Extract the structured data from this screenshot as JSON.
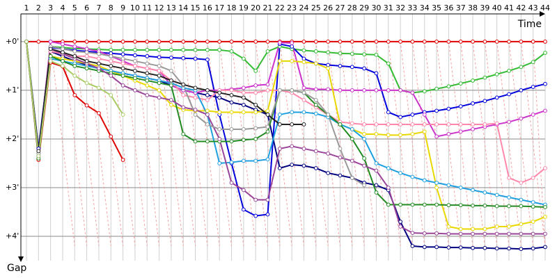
{
  "chart_data": {
    "type": "line",
    "x_label": "Time",
    "y_label": "Gap",
    "categories": [
      "1",
      "2",
      "3",
      "4",
      "5",
      "6",
      "7",
      "8",
      "9",
      "10",
      "11",
      "12",
      "13",
      "14",
      "15",
      "16",
      "17",
      "18",
      "19",
      "20",
      "21",
      "22",
      "23",
      "24",
      "25",
      "26",
      "27",
      "28",
      "29",
      "30",
      "31",
      "32",
      "33",
      "34",
      "35",
      "36",
      "37",
      "38",
      "39",
      "40",
      "41",
      "42",
      "43",
      "44"
    ],
    "ylim": [
      -0.57,
      4.5
    ],
    "y_reversed": true,
    "grid": true,
    "yticks": [
      {
        "value": 0,
        "label": "+0'"
      },
      {
        "value": 1,
        "label": "+1'"
      },
      {
        "value": 2,
        "label": "+2'"
      },
      {
        "value": 3,
        "label": "+3'"
      },
      {
        "value": 4,
        "label": "+4'"
      }
    ],
    "series": [
      {
        "color": "#e00000",
        "values": [
          0,
          0,
          0,
          0,
          0,
          0,
          0,
          0,
          0,
          0,
          0,
          0,
          0,
          0,
          0,
          0,
          0,
          0,
          0,
          0,
          0,
          0,
          0,
          0,
          0,
          0,
          0,
          0,
          0,
          0,
          0,
          0,
          0,
          0,
          0,
          0,
          0,
          0,
          0,
          0,
          0,
          0,
          0,
          0
        ]
      },
      {
        "color": "#e00000",
        "values": [
          0,
          2.43,
          0.43,
          0.51,
          1.1,
          1.31,
          1.47,
          1.95,
          2.43,
          null,
          null,
          null,
          null,
          null,
          null,
          null,
          null,
          null,
          null,
          null,
          null,
          null,
          null,
          null,
          null,
          null,
          null,
          null,
          null,
          null,
          null,
          null,
          null,
          null,
          null,
          null,
          null,
          null,
          null,
          null,
          null,
          null,
          null,
          null
        ]
      },
      {
        "color": "#33bb33",
        "values": [
          0,
          2.3,
          0.1,
          0.12,
          0.14,
          0.15,
          0.16,
          0.17,
          0.17,
          0.17,
          0.17,
          0.17,
          0.17,
          0.17,
          0.17,
          0.17,
          0.17,
          0.2,
          0.35,
          0.6,
          0.2,
          0.1,
          0.15,
          0.18,
          0.2,
          0.22,
          0.24,
          0.25,
          0.26,
          0.27,
          0.45,
          1.0,
          1.05,
          1.02,
          0.97,
          0.92,
          0.86,
          0.8,
          0.74,
          0.67,
          0.6,
          0.52,
          0.42,
          0.23
        ]
      },
      {
        "color": "#0000dd",
        "values": [
          0,
          2.2,
          0.12,
          0.15,
          0.18,
          0.2,
          0.22,
          0.24,
          0.26,
          0.28,
          0.3,
          0.32,
          0.33,
          0.34,
          0.35,
          0.37,
          1.5,
          2.5,
          3.45,
          3.58,
          3.55,
          0.05,
          0.1,
          0.35,
          0.45,
          0.48,
          0.5,
          0.52,
          0.55,
          0.65,
          1.45,
          1.55,
          1.5,
          1.45,
          1.42,
          1.38,
          1.33,
          1.27,
          1.22,
          1.15,
          1.08,
          1.0,
          0.93,
          0.87
        ]
      },
      {
        "color": "#000080",
        "values": [
          0,
          2.3,
          0.2,
          0.3,
          0.4,
          0.48,
          0.55,
          0.6,
          0.65,
          0.7,
          0.75,
          0.8,
          0.9,
          1.0,
          1.05,
          1.1,
          1.15,
          1.25,
          1.3,
          1.4,
          1.5,
          2.6,
          2.53,
          2.55,
          2.6,
          2.7,
          2.75,
          2.8,
          2.9,
          2.95,
          3.05,
          3.7,
          4.2,
          4.22,
          4.22,
          4.23,
          4.23,
          4.24,
          4.24,
          4.25,
          4.25,
          4.26,
          4.25,
          4.22
        ]
      },
      {
        "color": "#cc33cc",
        "values": [
          0,
          2.35,
          0.0,
          0.05,
          0.1,
          0.15,
          0.2,
          0.3,
          0.4,
          0.5,
          0.55,
          0.6,
          0.9,
          1.0,
          1.05,
          1.0,
          1.0,
          0.98,
          0.95,
          0.9,
          0.88,
          0.02,
          0.03,
          0.95,
          0.98,
          0.98,
          1.0,
          1.0,
          1.0,
          1.0,
          1.0,
          1.0,
          1.05,
          1.5,
          1.95,
          1.9,
          1.85,
          1.8,
          1.75,
          1.7,
          1.65,
          1.58,
          1.5,
          1.42
        ]
      },
      {
        "color": "#ff88aa",
        "values": [
          0,
          2.3,
          0.2,
          0.25,
          0.3,
          0.3,
          0.35,
          0.4,
          0.45,
          0.5,
          0.55,
          0.6,
          0.8,
          1.1,
          1.15,
          1.2,
          1.0,
          1.0,
          1.05,
          1.05,
          1.0,
          1.0,
          1.05,
          1.2,
          1.35,
          1.5,
          1.65,
          1.68,
          1.7,
          1.7,
          1.7,
          1.7,
          1.7,
          1.7,
          1.7,
          1.7,
          1.7,
          1.7,
          1.7,
          1.68,
          2.8,
          2.9,
          2.8,
          2.6
        ]
      },
      {
        "color": "#e8d800",
        "values": [
          0,
          2.25,
          0.3,
          0.35,
          0.4,
          0.45,
          0.5,
          0.6,
          0.7,
          0.8,
          0.9,
          1.0,
          1.3,
          1.4,
          1.42,
          1.42,
          1.45,
          1.45,
          1.45,
          1.45,
          1.42,
          0.4,
          0.4,
          0.42,
          0.45,
          0.55,
          1.7,
          1.8,
          1.9,
          1.9,
          1.92,
          1.92,
          1.9,
          1.85,
          3.0,
          3.8,
          3.85,
          3.85,
          3.85,
          3.8,
          3.8,
          3.75,
          3.7,
          3.6
        ]
      },
      {
        "color": "#1e9fe0",
        "values": [
          0,
          2.3,
          0.35,
          0.4,
          0.45,
          0.5,
          0.55,
          0.6,
          0.65,
          0.7,
          0.75,
          0.8,
          0.85,
          0.95,
          1.0,
          1.5,
          2.5,
          2.48,
          2.45,
          2.45,
          2.42,
          1.5,
          1.45,
          1.45,
          1.48,
          1.55,
          1.7,
          1.8,
          2.0,
          2.5,
          2.6,
          2.7,
          2.78,
          2.85,
          2.9,
          2.95,
          3.0,
          3.05,
          3.1,
          3.15,
          3.2,
          3.25,
          3.3,
          3.35
        ]
      },
      {
        "color": "#228b22",
        "values": [
          0,
          2.4,
          0.3,
          0.4,
          0.5,
          0.55,
          0.6,
          0.65,
          0.7,
          0.75,
          0.8,
          0.85,
          0.9,
          1.9,
          2.05,
          2.05,
          2.05,
          2.05,
          2.02,
          2.0,
          1.85,
          1.0,
          1.0,
          1.05,
          1.3,
          1.5,
          1.7,
          2.0,
          2.4,
          3.1,
          3.35,
          3.35,
          3.35,
          3.35,
          3.35,
          3.36,
          3.36,
          3.37,
          3.37,
          3.38,
          3.38,
          3.38,
          3.39,
          3.4
        ]
      },
      {
        "color": "#994499",
        "values": [
          0,
          2.35,
          0.15,
          0.25,
          0.35,
          0.45,
          0.55,
          0.7,
          0.9,
          1.0,
          1.1,
          1.15,
          1.2,
          1.35,
          1.4,
          1.5,
          2.0,
          2.9,
          3.05,
          3.25,
          3.25,
          2.2,
          2.15,
          2.2,
          2.25,
          2.3,
          2.38,
          2.45,
          2.55,
          2.65,
          3.0,
          3.8,
          3.93,
          3.94,
          3.94,
          3.95,
          3.95,
          3.95,
          3.95,
          3.95,
          3.95,
          3.95,
          3.95,
          3.95
        ]
      },
      {
        "color": "#999999",
        "values": [
          0,
          2.3,
          0.1,
          0.15,
          0.2,
          0.22,
          0.25,
          0.3,
          0.35,
          0.4,
          0.45,
          0.5,
          0.6,
          0.9,
          1.5,
          1.7,
          1.8,
          1.8,
          1.8,
          1.78,
          1.75,
          1.0,
          1.0,
          1.05,
          1.2,
          1.5,
          2.2,
          2.8,
          2.95,
          null,
          null,
          null,
          null,
          null,
          null,
          null,
          null,
          null,
          null,
          null,
          null,
          null,
          null,
          null
        ]
      },
      {
        "color": "#222222",
        "values": [
          0,
          2.25,
          0.15,
          0.22,
          0.3,
          0.4,
          0.45,
          0.5,
          0.55,
          0.6,
          0.65,
          0.7,
          0.8,
          0.88,
          0.95,
          1.0,
          1.05,
          1.1,
          1.15,
          1.3,
          1.5,
          1.7,
          1.7,
          1.7,
          null,
          null,
          null,
          null,
          null,
          null,
          null,
          null,
          null,
          null,
          null,
          null,
          null,
          null,
          null,
          null,
          null,
          null,
          null,
          null
        ]
      },
      {
        "color": "#aacc66",
        "values": [
          0,
          2.35,
          0.4,
          0.5,
          0.7,
          0.85,
          0.95,
          1.1,
          1.5,
          null,
          null,
          null,
          null,
          null,
          null,
          null,
          null,
          null,
          null,
          null,
          null,
          null,
          null,
          null,
          null,
          null,
          null,
          null,
          null,
          null,
          null,
          null,
          null,
          null,
          null,
          null,
          null,
          null,
          null,
          null,
          null,
          null,
          null,
          null
        ]
      }
    ]
  }
}
